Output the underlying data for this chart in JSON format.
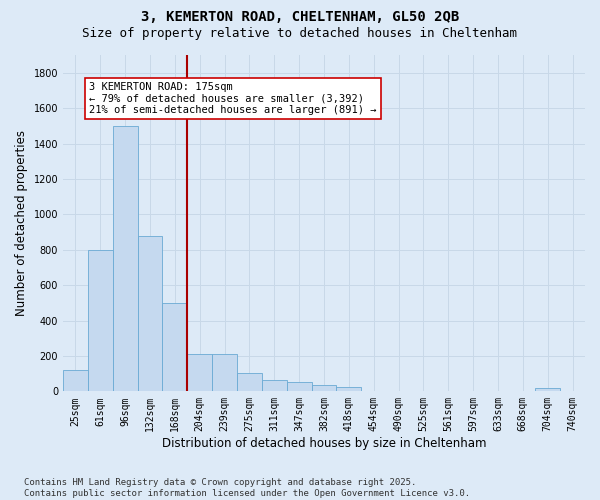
{
  "title_line1": "3, KEMERTON ROAD, CHELTENHAM, GL50 2QB",
  "title_line2": "Size of property relative to detached houses in Cheltenham",
  "xlabel": "Distribution of detached houses by size in Cheltenham",
  "ylabel": "Number of detached properties",
  "bin_labels": [
    "25sqm",
    "61sqm",
    "96sqm",
    "132sqm",
    "168sqm",
    "204sqm",
    "239sqm",
    "275sqm",
    "311sqm",
    "347sqm",
    "382sqm",
    "418sqm",
    "454sqm",
    "490sqm",
    "525sqm",
    "561sqm",
    "597sqm",
    "633sqm",
    "668sqm",
    "704sqm",
    "740sqm"
  ],
  "bar_heights": [
    120,
    800,
    1500,
    880,
    500,
    210,
    210,
    105,
    65,
    50,
    35,
    25,
    0,
    0,
    0,
    0,
    0,
    0,
    0,
    20,
    0
  ],
  "bar_color": "#c5d9ef",
  "bar_edge_color": "#6aaad4",
  "background_color": "#ddeaf7",
  "grid_color": "#c8d8e8",
  "ylim": [
    0,
    1900
  ],
  "yticks": [
    0,
    200,
    400,
    600,
    800,
    1000,
    1200,
    1400,
    1600,
    1800
  ],
  "vline_index": 4.98,
  "vline_color": "#aa0000",
  "annotation_line1": "3 KEMERTON ROAD: 175sqm",
  "annotation_line2": "← 79% of detached houses are smaller (3,392)",
  "annotation_line3": "21% of semi-detached houses are larger (891) →",
  "annotation_box_facecolor": "#ffffff",
  "annotation_box_edgecolor": "#cc0000",
  "footnote": "Contains HM Land Registry data © Crown copyright and database right 2025.\nContains public sector information licensed under the Open Government Licence v3.0.",
  "title_fontsize": 10,
  "subtitle_fontsize": 9,
  "axis_label_fontsize": 8.5,
  "tick_fontsize": 7,
  "annotation_fontsize": 7.5,
  "footnote_fontsize": 6.5
}
